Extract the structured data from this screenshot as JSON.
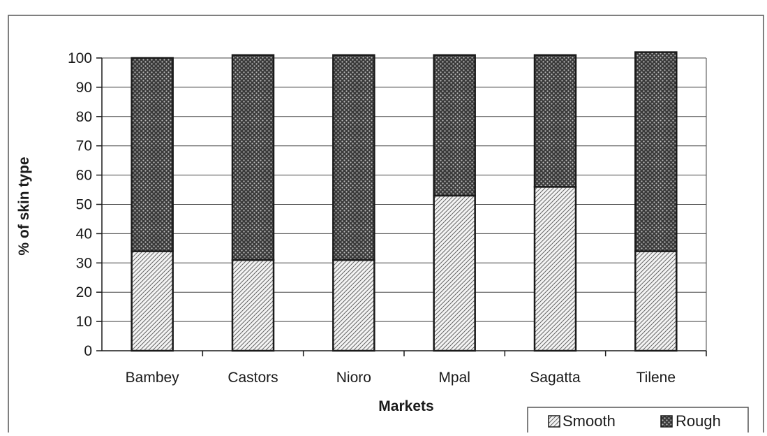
{
  "chart_data": {
    "type": "bar",
    "stacked": true,
    "title": "",
    "xlabel": "Markets",
    "ylabel": "% of skin type",
    "categories": [
      "Bambey",
      "Castors",
      "Nioro",
      "Mpal",
      "Sagatta",
      "Tilene"
    ],
    "series": [
      {
        "name": "Smooth",
        "values": [
          34,
          31,
          31,
          53,
          56,
          34
        ]
      },
      {
        "name": "Rough",
        "values": [
          66,
          70,
          70,
          48,
          45,
          68
        ]
      }
    ],
    "ylim": [
      0,
      100
    ],
    "yticks": [
      "0",
      "10",
      "20",
      "30",
      "40",
      "50",
      "60",
      "70",
      "80",
      "90",
      "100"
    ],
    "grid": true,
    "legend_position": "bottom-right",
    "colors": {
      "axis": "#1a1a1a",
      "grid": "#444444",
      "bar_outline": "#1a1a1a",
      "smooth_hatch": "#666666",
      "rough_fill": "#555555"
    }
  }
}
